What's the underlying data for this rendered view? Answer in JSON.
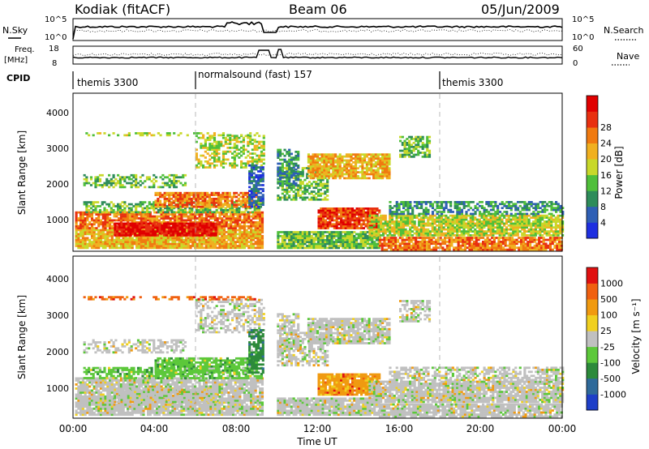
{
  "header": {
    "station": "Kodiak (fitACF)",
    "beam": "Beam 06",
    "date": "05/Jun/2009"
  },
  "ancillary": {
    "nsky_label": "N.Sky",
    "nsearch_label": "N.Search",
    "nsky_ticks": [
      "10^5",
      "10^0"
    ],
    "freq_label_1": "Freq.",
    "freq_label_2": "[MHz]",
    "freq_ticks": [
      "18",
      "8"
    ],
    "nave_label": "Nave",
    "nave_ticks": [
      "60",
      "0"
    ],
    "cpid_label": "CPID",
    "cpid_segments": [
      {
        "label": "themis 3300",
        "start_hour": 0
      },
      {
        "label": "normalsound (fast) 157",
        "start_hour": 6
      },
      {
        "label": "themis 3300",
        "start_hour": 18
      }
    ]
  },
  "colors": {
    "power": [
      "#1e2fe0",
      "#2f5fb5",
      "#2e8c5a",
      "#4fbf3a",
      "#c8d82a",
      "#f0b020",
      "#f07a10",
      "#e83010",
      "#e00000"
    ],
    "velocity": [
      "#1e3fc8",
      "#2f6a9a",
      "#2c8a3a",
      "#5cc83a",
      "#c0c0c0",
      "#f0d020",
      "#f09a10",
      "#f06010",
      "#e01010"
    ]
  },
  "chart_data": [
    {
      "type": "heatmap",
      "panel": "power",
      "ylabel": "Slant Range [km]",
      "yticks": [
        1000,
        2000,
        3000,
        4000
      ],
      "ylim": [
        180,
        4600
      ],
      "xticks": [
        "00:00",
        "04:00",
        "08:00",
        "12:00",
        "16:00",
        "20:00",
        "00:00"
      ],
      "xlim_hours": [
        0,
        24
      ],
      "colorbar_label": "Power [dB]",
      "colorbar_ticks": [
        "4",
        "8",
        "12",
        "16",
        "20",
        "24",
        "28"
      ],
      "data_gap_hours": [
        9.3,
        10.0
      ]
    },
    {
      "type": "heatmap",
      "panel": "velocity",
      "ylabel": "Slant Range [km]",
      "yticks": [
        1000,
        2000,
        3000,
        4000
      ],
      "ylim": [
        180,
        4600
      ],
      "xticks": [
        "00:00",
        "04:00",
        "08:00",
        "12:00",
        "16:00",
        "20:00",
        "00:00"
      ],
      "xlim_hours": [
        0,
        24
      ],
      "xlabel": "Time UT",
      "colorbar_label": "Velocity [m s⁻¹]",
      "colorbar_ticks": [
        "1000",
        "500",
        "100",
        "25",
        "-25",
        "-100",
        "-500",
        "-1000"
      ],
      "data_gap_hours": [
        9.3,
        10.0
      ]
    }
  ]
}
